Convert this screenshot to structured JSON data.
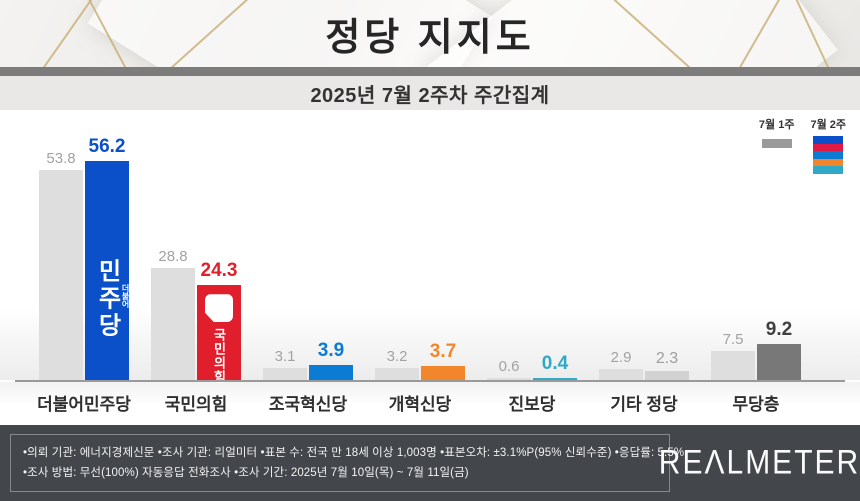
{
  "header": {
    "title": "정당 지지도"
  },
  "subtitle": "2025년 7월 2주차 주간집계",
  "legend": {
    "week1_label": "7월 1주",
    "week2_label": "7월 2주",
    "week1_color": "#9a9a9a",
    "week2_colors": [
      "#0b50c8",
      "#e01a45",
      "#0c7bd3",
      "#f1862c",
      "#2fa9c6"
    ]
  },
  "chart_data": {
    "type": "bar",
    "title": "정당 지지도",
    "subtitle": "2025년 7월 2주차 주간집계",
    "unit": "%",
    "ylim": [
      0,
      60
    ],
    "grid": false,
    "legend_position": "top-right",
    "categories": [
      "더불어민주당",
      "국민의힘",
      "조국혁신당",
      "개혁신당",
      "진보당",
      "기타 정당",
      "무당층"
    ],
    "series": [
      {
        "name": "7월 1주",
        "values": [
          53.8,
          28.8,
          3.1,
          3.2,
          0.6,
          2.9,
          7.5
        ]
      },
      {
        "name": "7월 2주",
        "values": [
          56.2,
          24.3,
          3.9,
          3.7,
          0.4,
          2.3,
          9.2
        ]
      }
    ],
    "week1_bar_color": "#dedede",
    "week1_value_color": "#a3a3a3",
    "week2_bar_colors": [
      "#0b50c8",
      "#e11e2b",
      "#0c7bd3",
      "#f1862c",
      "#2fa9c6",
      "#d2d2d2",
      "#787878"
    ],
    "week2_value_colors": [
      "#0b50c8",
      "#e11e2b",
      "#0c7bd3",
      "#f1862c",
      "#2fa9c6",
      "#9e9e9e",
      "#3f3f3f"
    ],
    "week2_value_bold": [
      true,
      true,
      true,
      true,
      true,
      false,
      true
    ],
    "in_bar_logos": {
      "democratic_text_main": "민주당",
      "democratic_text_small": "더불어",
      "ppp_text": "국민의힘"
    }
  },
  "footer": {
    "line1": "•의뢰 기관: 에너지경제신문  •조사 기관: 리얼미터  •표본 수: 전국 만 18세 이상 1,003명  •표본오차: ±3.1%P(95% 신뢰수준)  •응답률: 5.5%",
    "line2": "•조사 방법: 무선(100%) 자동응답 전화조사  •조사 기간: 2025년 7월 10일(목) ~ 7월 11일(금)",
    "brand": "REΛLMETER"
  }
}
